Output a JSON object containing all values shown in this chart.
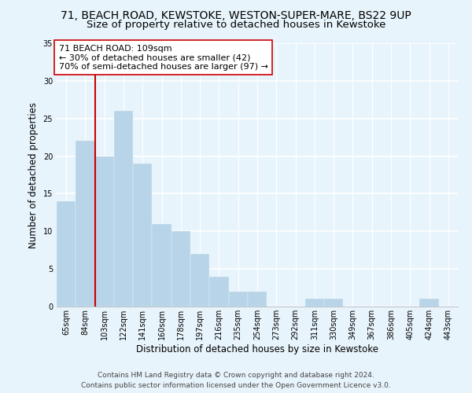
{
  "title": "71, BEACH ROAD, KEWSTOKE, WESTON-SUPER-MARE, BS22 9UP",
  "subtitle": "Size of property relative to detached houses in Kewstoke",
  "xlabel": "Distribution of detached houses by size in Kewstoke",
  "ylabel": "Number of detached properties",
  "bar_labels": [
    "65sqm",
    "84sqm",
    "103sqm",
    "122sqm",
    "141sqm",
    "160sqm",
    "178sqm",
    "197sqm",
    "216sqm",
    "235sqm",
    "254sqm",
    "273sqm",
    "292sqm",
    "311sqm",
    "330sqm",
    "349sqm",
    "367sqm",
    "386sqm",
    "405sqm",
    "424sqm",
    "443sqm"
  ],
  "bar_values": [
    14,
    22,
    20,
    26,
    19,
    11,
    10,
    7,
    4,
    2,
    2,
    0,
    0,
    1,
    1,
    0,
    0,
    0,
    0,
    1,
    0
  ],
  "bar_color": "#b8d4e8",
  "vline_index": 2,
  "vline_color": "#cc0000",
  "annotation_text": "71 BEACH ROAD: 109sqm\n← 30% of detached houses are smaller (42)\n70% of semi-detached houses are larger (97) →",
  "annotation_box_facecolor": "white",
  "annotation_box_edgecolor": "#cc0000",
  "ylim": [
    0,
    35
  ],
  "yticks": [
    0,
    5,
    10,
    15,
    20,
    25,
    30,
    35
  ],
  "footer_line1": "Contains HM Land Registry data © Crown copyright and database right 2024.",
  "footer_line2": "Contains public sector information licensed under the Open Government Licence v3.0.",
  "background_color": "#e8f4fb",
  "grid_color": "white",
  "title_fontsize": 10,
  "subtitle_fontsize": 9.5,
  "axis_label_fontsize": 8.5,
  "tick_fontsize": 7,
  "annotation_fontsize": 8,
  "footer_fontsize": 6.5
}
